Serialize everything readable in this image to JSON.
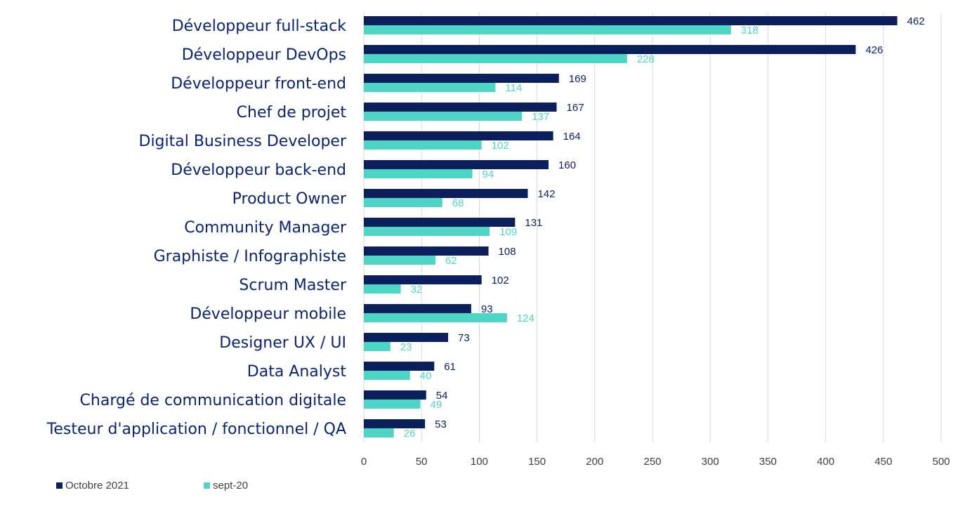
{
  "chart_data": {
    "type": "bar",
    "orientation": "horizontal",
    "categories": [
      "Développeur full-stack",
      "Développeur DevOps",
      "Développeur front-end",
      "Chef de projet",
      "Digital Business Developer",
      "Développeur back-end",
      "Product Owner",
      "Community Manager",
      "Graphiste / Infographiste",
      "Scrum Master",
      "Développeur mobile",
      "Designer UX / UI",
      "Data Analyst",
      "Chargé de communication digitale",
      "Testeur d'application / fonctionnel / QA"
    ],
    "series": [
      {
        "name": "Octobre 2021",
        "color": "#0a1f5c",
        "values": [
          462,
          426,
          169,
          167,
          164,
          160,
          142,
          131,
          108,
          102,
          93,
          73,
          61,
          54,
          53
        ]
      },
      {
        "name": "sept-20",
        "color": "#4dd5c6",
        "values": [
          318,
          228,
          114,
          137,
          102,
          94,
          68,
          109,
          62,
          32,
          124,
          23,
          40,
          49,
          26
        ]
      }
    ],
    "xlim": [
      0,
      500
    ],
    "xticks": [
      0,
      50,
      100,
      150,
      200,
      250,
      300,
      350,
      400,
      450,
      500
    ],
    "grid": "vertical",
    "legend": "bottom-left",
    "value_label_color": "#0a1f5c",
    "title": "",
    "xlabel": "",
    "ylabel": ""
  }
}
